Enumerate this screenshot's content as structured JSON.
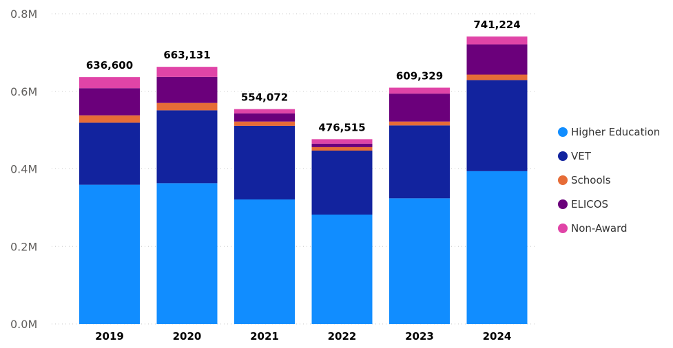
{
  "chart_data": {
    "type": "bar",
    "stacked": true,
    "title": "",
    "xlabel": "",
    "ylabel": "",
    "categories": [
      "2019",
      "2020",
      "2021",
      "2022",
      "2023",
      "2024"
    ],
    "totals": [
      "636,600",
      "663,131",
      "554,072",
      "476,515",
      "609,329",
      "741,224"
    ],
    "ylim": [
      0,
      800000
    ],
    "yticks": [
      0,
      200000,
      400000,
      600000,
      800000
    ],
    "ytick_labels": [
      "0.0M",
      "0.2M",
      "0.4M",
      "0.6M",
      "0.8M"
    ],
    "grid": true,
    "legend_position": "right",
    "series": [
      {
        "name": "Higher Education",
        "color": "#118DFF",
        "values": [
          359000,
          363000,
          321000,
          282000,
          324000,
          394000
        ]
      },
      {
        "name": "VET",
        "color": "#12239E",
        "values": [
          160000,
          188000,
          190000,
          165000,
          188000,
          235000
        ]
      },
      {
        "name": "Schools",
        "color": "#E66C37",
        "values": [
          19000,
          19000,
          11000,
          9000,
          10000,
          14000
        ]
      },
      {
        "name": "ELICOS",
        "color": "#6B007B",
        "values": [
          70000,
          67000,
          21000,
          9000,
          72000,
          78000
        ]
      },
      {
        "name": "Non-Award",
        "color": "#E044A7",
        "values": [
          28600,
          26131,
          11072,
          11515,
          15329,
          20224
        ]
      }
    ]
  }
}
